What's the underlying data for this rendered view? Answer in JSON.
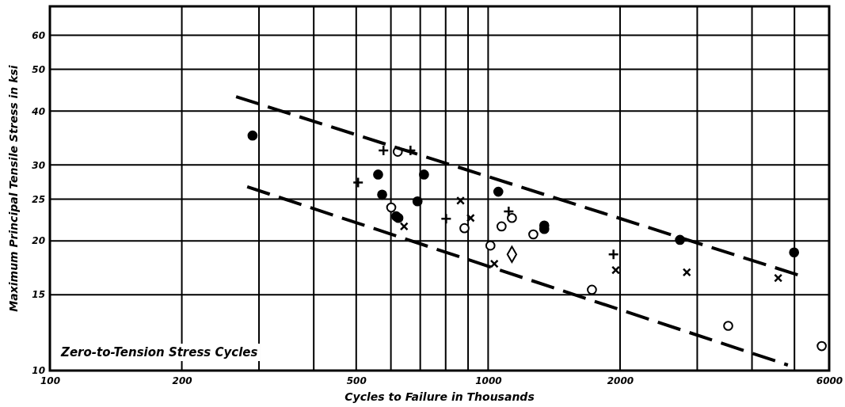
{
  "chart_data": {
    "type": "scatter",
    "xlabel": "Cycles to Failure in Thousands",
    "ylabel": "Maximum Principal Tensile Stress in ksi",
    "annotations": [
      "Zero-to-Tension Stress Cycles"
    ],
    "log": "xy",
    "grid": true,
    "xlim": [
      100,
      6000
    ],
    "ylim": [
      10,
      70
    ],
    "xticks": [
      100,
      200,
      {
        "value": 300,
        "label": null
      },
      {
        "value": 400,
        "label": null
      },
      500,
      {
        "value": 600,
        "label": null
      },
      {
        "value": 700,
        "label": null
      },
      {
        "value": 800,
        "label": null
      },
      {
        "value": 900,
        "label": null
      },
      1000,
      2000,
      {
        "value": 3000,
        "label": null
      },
      {
        "value": 4000,
        "label": null
      },
      {
        "value": 5000,
        "label": null
      },
      6000
    ],
    "yticks": [
      10,
      15,
      20,
      25,
      30,
      40,
      50,
      60
    ],
    "series": [
      {
        "marker": "circle",
        "color": "#000000",
        "x": [
          290,
          561,
          573,
          617,
          624,
          714,
          690,
          1055,
          1343,
          1343,
          2740,
          4990
        ],
        "values": [
          35.1,
          28.5,
          25.6,
          22.8,
          22.6,
          28.5,
          24.7,
          26.0,
          21.7,
          21.3,
          20.1,
          18.8
        ]
      },
      {
        "marker": "circle-open",
        "color": "#000000",
        "x": [
          622,
          601,
          883,
          1073,
          1012,
          1268,
          1725,
          3530,
          5770,
          1133
        ],
        "values": [
          32.2,
          23.9,
          21.4,
          21.6,
          19.5,
          20.7,
          15.4,
          12.7,
          11.4,
          22.6
        ]
      },
      {
        "marker": "cross",
        "color": "#000000",
        "x": [
          577,
          665,
          505,
          802,
          1114,
          1932
        ],
        "values": [
          32.4,
          32.4,
          27.3,
          22.5,
          23.4,
          18.6
        ]
      },
      {
        "marker": "x",
        "color": "#000000",
        "x": [
          643,
          865,
          912,
          1033,
          1955,
          2840,
          4590
        ],
        "values": [
          21.6,
          24.8,
          22.6,
          17.7,
          17.1,
          16.9,
          16.4
        ]
      },
      {
        "marker": "diamond",
        "color": "#000000",
        "x": [
          1133
        ],
        "values": [
          18.6
        ]
      },
      {
        "type": "line",
        "marker": "none",
        "line_style": "dashed",
        "color": "#000000",
        "x": [
          266,
          5160
        ],
        "values": [
          43.2,
          16.6
        ]
      },
      {
        "type": "line",
        "marker": "none",
        "line_style": "dashed",
        "color": "#000000",
        "x": [
          282,
          4830
        ],
        "values": [
          26.7,
          10.3
        ]
      }
    ]
  }
}
